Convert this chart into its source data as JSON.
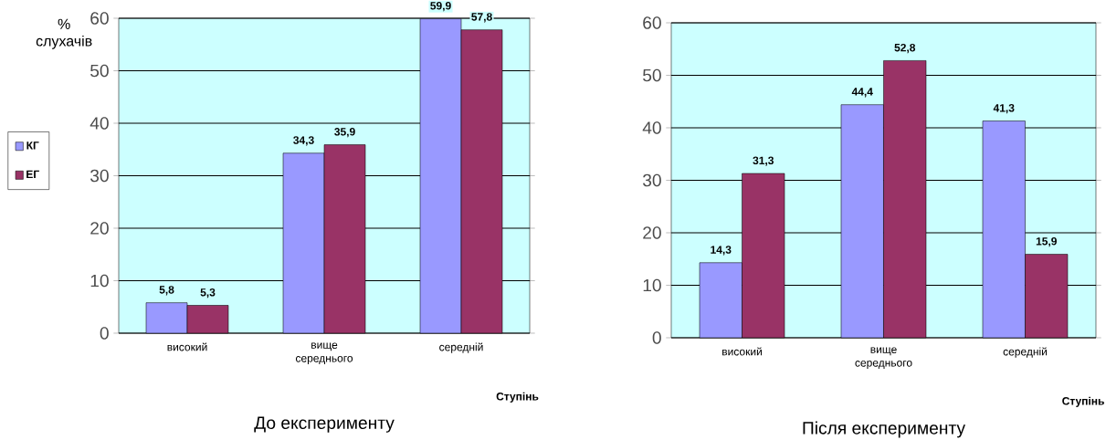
{
  "chart_data": [
    {
      "type": "bar",
      "title": "До експерименту",
      "xlabel": "Ступінь",
      "ylabel": "% слухачів",
      "categories": [
        "високий",
        "вище середнього",
        "середній"
      ],
      "ylim": [
        0,
        60
      ],
      "yticks": [
        0,
        10,
        20,
        30,
        40,
        50,
        60
      ],
      "grid": "y",
      "legend": "left",
      "series": [
        {
          "name": "КГ",
          "color": "#9999ff",
          "values": [
            5.8,
            34.3,
            59.9
          ],
          "value_labels": [
            "5,8",
            "34,3",
            "59,9"
          ]
        },
        {
          "name": "ЕГ",
          "color": "#993366",
          "values": [
            5.3,
            35.9,
            57.8
          ],
          "value_labels": [
            "5,3",
            "35,9",
            "57,8"
          ]
        }
      ]
    },
    {
      "type": "bar",
      "title": "Після експерименту",
      "xlabel": "Ступінь",
      "categories": [
        "високий",
        "вище середнього",
        "середній"
      ],
      "ylim": [
        0,
        60
      ],
      "yticks": [
        0,
        10,
        20,
        30,
        40,
        50,
        60
      ],
      "grid": "y",
      "series": [
        {
          "color": "#9999ff",
          "values": [
            14.3,
            44.4,
            41.3
          ],
          "value_labels": [
            "14,3",
            "44,4",
            "41,3"
          ]
        },
        {
          "color": "#993366",
          "values": [
            31.3,
            52.8,
            15.9
          ],
          "value_labels": [
            "31,3",
            "52,8",
            "15,9"
          ]
        }
      ]
    }
  ]
}
